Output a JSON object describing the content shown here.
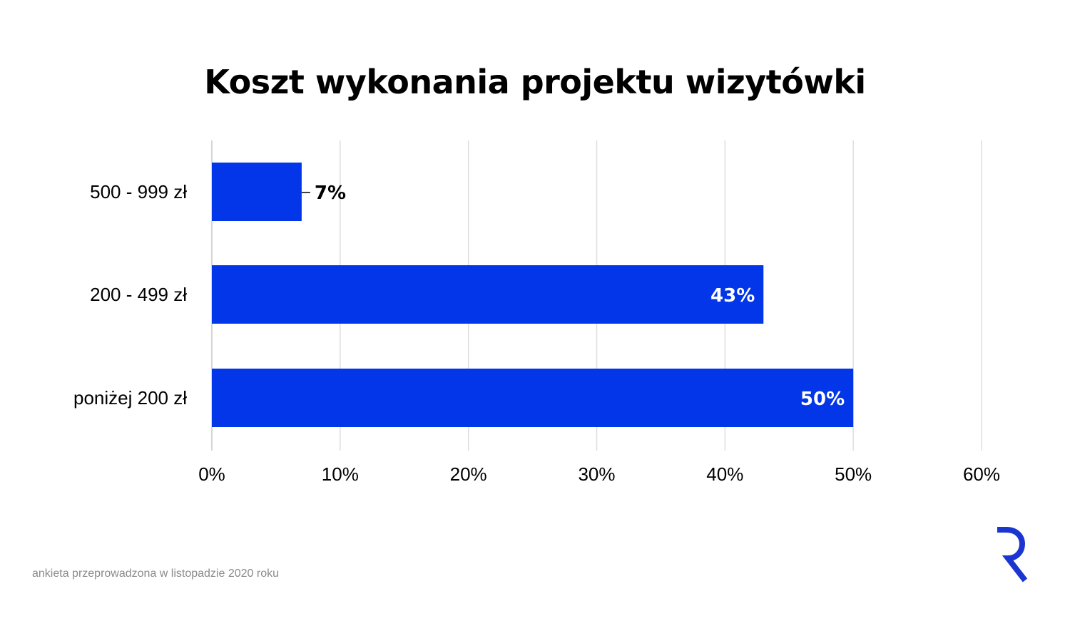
{
  "title": "Koszt wykonania projektu wizytówki",
  "footer": "ankieta przeprowadzona w listopadzie 2020 roku",
  "logo_icon": "r-logo-icon",
  "colors": {
    "bar": "#0336e8",
    "grid": "#dedede",
    "axis_text": "#000000",
    "logo": "#1b35d0",
    "footer": "#8a8a8a"
  },
  "chart_data": {
    "type": "bar",
    "orientation": "horizontal",
    "categories": [
      "500 - 999 zł",
      "200 - 499 zł",
      "poniżej 200 zł"
    ],
    "values": [
      7,
      43,
      50
    ],
    "value_labels": [
      "7%",
      "43%",
      "50%"
    ],
    "xlim": [
      0,
      60
    ],
    "xticks": [
      0,
      10,
      20,
      30,
      40,
      50,
      60
    ],
    "xtick_labels": [
      "0%",
      "10%",
      "20%",
      "30%",
      "40%",
      "50%",
      "60%"
    ],
    "grid": true,
    "legend": "none"
  }
}
